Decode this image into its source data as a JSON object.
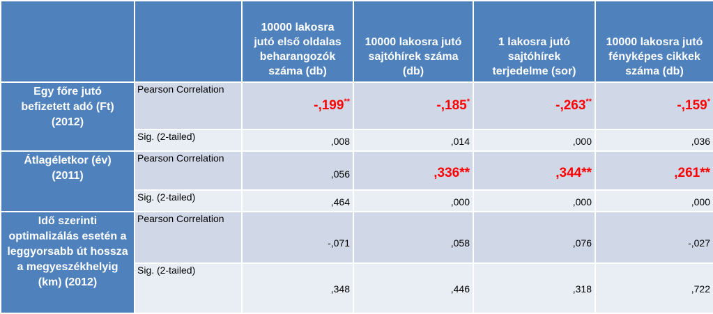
{
  "columns": [
    {
      "line1": "10000 lakosra",
      "line2": "jutó első oldalas",
      "line3": "beharangozók",
      "line4": "száma (db)"
    },
    {
      "line1": "10000 lakosra  jutó",
      "line2": "sajtóhírek száma",
      "line3": "(db)",
      "line4": ""
    },
    {
      "line1": "1 lakosra  jutó",
      "line2": "sajtóhírek",
      "line3": "terjedelme (sor)",
      "line4": ""
    },
    {
      "line1": "10000 lakosra jutó",
      "line2": "fényképes cikkek",
      "line3": "száma (db)",
      "line4": ""
    }
  ],
  "labels": {
    "pearson": "Pearson Correlation",
    "sig": "Sig. (2-tailed)"
  },
  "groups": [
    {
      "label_lines": [
        "Egy főre jutó",
        "befizetett adó (Ft)",
        "(2012)"
      ],
      "pearson": [
        {
          "value": "-,199",
          "sig_mark": "**"
        },
        {
          "value": "-,185",
          "sig_mark": "*"
        },
        {
          "value": "-,263",
          "sig_mark": "**"
        },
        {
          "value": "-,159",
          "sig_mark": "*"
        }
      ],
      "sig": [
        ",008",
        ",014",
        ",000",
        ",036"
      ]
    },
    {
      "label_lines": [
        "Átlagéletkor (év)",
        "(2011)"
      ],
      "pearson": [
        {
          "value": ",056",
          "sig_mark": ""
        },
        {
          "value": ",336**",
          "sig_mark": ""
        },
        {
          "value": ",344**",
          "sig_mark": ""
        },
        {
          "value": ",261**",
          "sig_mark": ""
        }
      ],
      "sig": [
        ",464",
        ",000",
        ",000",
        ",000"
      ]
    },
    {
      "label_lines": [
        "Idő szerinti",
        "optimalizálás esetén a",
        "leggyorsabb út hossza",
        "a megyeszékhelyig",
        "(km) (2012)"
      ],
      "pearson": [
        {
          "value": "-,071",
          "sig_mark": ""
        },
        {
          "value": ",058",
          "sig_mark": ""
        },
        {
          "value": ",076",
          "sig_mark": ""
        },
        {
          "value": "-,027",
          "sig_mark": ""
        }
      ],
      "sig": [
        ",348",
        ",446",
        ",318",
        ",722"
      ]
    }
  ],
  "colors": {
    "header_bg": "#4f81bd",
    "row_bg_dark": "#d0d8e8",
    "row_bg_light": "#e9edf4",
    "significant_text": "#ff0000"
  }
}
